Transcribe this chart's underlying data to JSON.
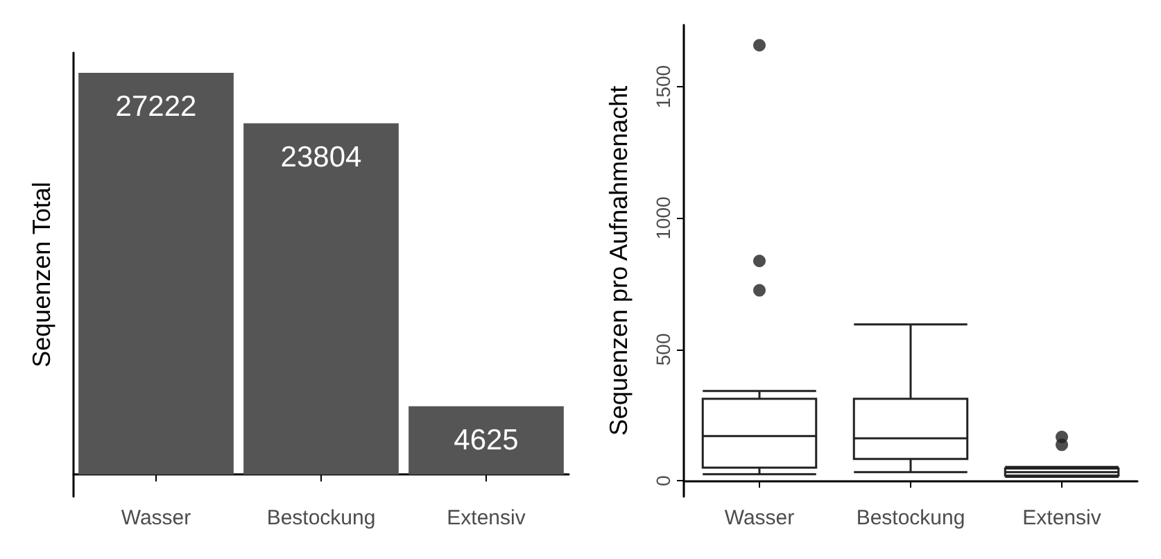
{
  "chart_data": [
    {
      "type": "bar",
      "ylabel": "Sequenzen Total",
      "categories": [
        "Wasser",
        "Bestockung",
        "Extensiv"
      ],
      "values": [
        27222,
        23804,
        4625
      ],
      "color": "#555555",
      "data_labels": true,
      "tick_labels": "x"
    },
    {
      "type": "box",
      "ylabel": "Sequenzen pro Aufnahmenacht",
      "categories": [
        "Wasser",
        "Bestockung",
        "Extensiv"
      ],
      "boxes": [
        {
          "low": 25,
          "q1": 50,
          "median": 170,
          "q3": 312,
          "high": 342,
          "outliers": [
            725,
            837,
            1658
          ]
        },
        {
          "low": 33,
          "q1": 83,
          "median": 162,
          "q3": 312,
          "high": 595
        },
        {
          "low": 15,
          "q1": 20,
          "median": 33,
          "q3": 47,
          "high": 53,
          "outliers": [
            137,
            167
          ]
        }
      ],
      "ylim": [
        -60,
        1735
      ],
      "yticks": [
        0,
        500,
        1000,
        1500
      ]
    }
  ]
}
